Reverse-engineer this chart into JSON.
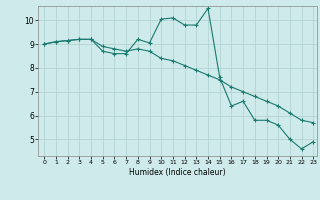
{
  "xlabel": "Humidex (Indice chaleur)",
  "ylabel": "",
  "xlim": [
    -0.5,
    23.3
  ],
  "ylim": [
    4.3,
    10.6
  ],
  "background_color": "#ceeaea",
  "line_color": "#1a7a6e",
  "grid_color": "#add0d0",
  "x_ticks": [
    0,
    1,
    2,
    3,
    4,
    5,
    6,
    7,
    8,
    9,
    10,
    11,
    12,
    13,
    14,
    15,
    16,
    17,
    18,
    19,
    20,
    21,
    22,
    23
  ],
  "y_ticks": [
    5,
    6,
    7,
    8,
    9,
    10
  ],
  "line1_x": [
    0,
    1,
    2,
    3,
    4,
    5,
    6,
    7,
    8,
    9,
    10,
    11,
    12,
    13,
    14,
    15,
    16,
    17,
    18,
    19,
    20,
    21,
    22,
    23
  ],
  "line1_y": [
    9.0,
    9.1,
    9.15,
    9.2,
    9.2,
    8.7,
    8.6,
    8.6,
    9.2,
    9.05,
    10.05,
    10.1,
    9.8,
    9.8,
    10.5,
    7.6,
    6.4,
    6.6,
    5.8,
    5.8,
    5.6,
    5.0,
    4.6,
    4.9
  ],
  "line2_x": [
    0,
    1,
    2,
    3,
    4,
    5,
    6,
    7,
    8,
    9,
    10,
    11,
    12,
    13,
    14,
    15,
    16,
    17,
    18,
    19,
    20,
    21,
    22,
    23
  ],
  "line2_y": [
    9.0,
    9.1,
    9.15,
    9.2,
    9.2,
    8.9,
    8.8,
    8.7,
    8.8,
    8.7,
    8.4,
    8.3,
    8.1,
    7.9,
    7.7,
    7.5,
    7.2,
    7.0,
    6.8,
    6.6,
    6.4,
    6.1,
    5.8,
    5.7
  ]
}
